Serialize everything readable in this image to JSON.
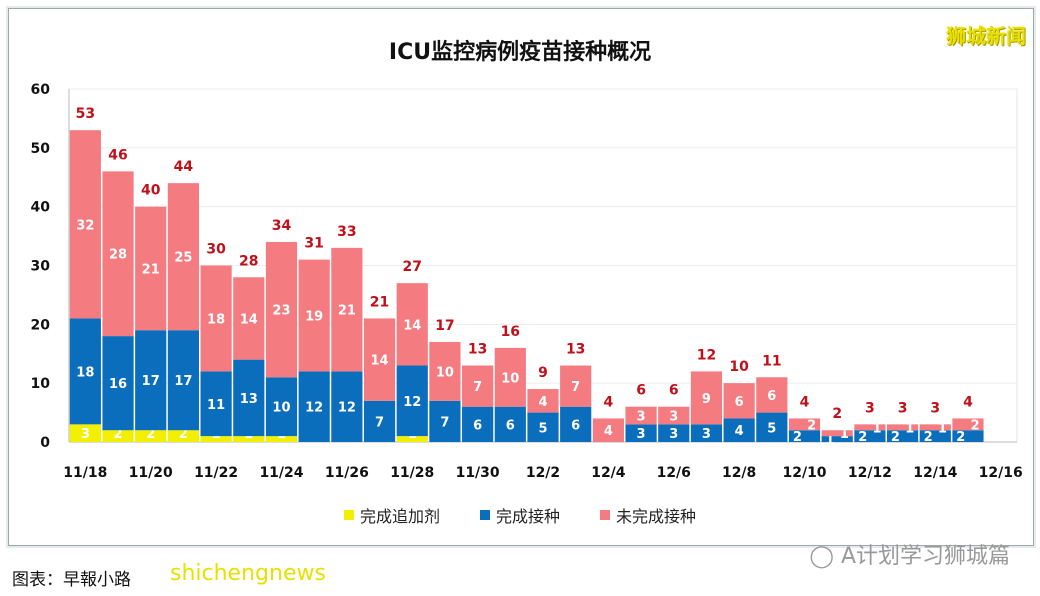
{
  "brand": "狮城新闻",
  "caption": "图表：早報小路",
  "watermark": "shichengnews",
  "wechat_source": "A计划学习狮城篇",
  "chart_data": {
    "type": "bar",
    "stacked": true,
    "title": "ICU监控病例疫苗接种概况",
    "xlabel": "",
    "ylabel": "",
    "ylim": [
      0,
      60
    ],
    "yticks": [
      0,
      10,
      20,
      30,
      40,
      50,
      60
    ],
    "grid": true,
    "legend_placement": "bottom",
    "categories": [
      "11/18",
      "11/19",
      "11/20",
      "11/21",
      "11/22",
      "11/23",
      "11/24",
      "11/25",
      "11/26",
      "11/27",
      "11/28",
      "11/29",
      "11/30",
      "12/1",
      "12/2",
      "12/3",
      "12/4",
      "12/5",
      "12/6",
      "12/7",
      "12/8",
      "12/9",
      "12/10",
      "12/11",
      "12/12",
      "12/13",
      "12/14",
      "12/15"
    ],
    "xtick_labels": [
      "11/18",
      "11/20",
      "11/22",
      "11/24",
      "11/26",
      "11/28",
      "11/30",
      "12/2",
      "12/4",
      "12/6",
      "12/8",
      "12/10",
      "12/12",
      "12/14",
      "12/16"
    ],
    "series": [
      {
        "name": "完成追加剂",
        "color": "#f2f000",
        "values": [
          3,
          2,
          2,
          2,
          1,
          1,
          1,
          0,
          0,
          0,
          1,
          0,
          0,
          0,
          0,
          0,
          0,
          0,
          0,
          0,
          0,
          0,
          0,
          0,
          0,
          0,
          0,
          0
        ]
      },
      {
        "name": "完成接种",
        "color": "#0a6ebd",
        "values": [
          18,
          16,
          17,
          17,
          11,
          13,
          10,
          12,
          12,
          7,
          12,
          7,
          6,
          6,
          5,
          6,
          0,
          3,
          3,
          3,
          4,
          5,
          2,
          1,
          2,
          2,
          2,
          2
        ]
      },
      {
        "name": "未完成接种",
        "color": "#f47b80",
        "values": [
          32,
          28,
          21,
          25,
          18,
          14,
          23,
          19,
          21,
          14,
          14,
          10,
          7,
          10,
          4,
          7,
          4,
          3,
          3,
          9,
          6,
          6,
          2,
          1,
          1,
          1,
          1,
          2
        ]
      }
    ],
    "totals": [
      53,
      46,
      40,
      44,
      30,
      28,
      34,
      31,
      33,
      21,
      27,
      17,
      13,
      16,
      9,
      13,
      4,
      6,
      6,
      12,
      10,
      11,
      4,
      2,
      3,
      3,
      3,
      4
    ]
  }
}
